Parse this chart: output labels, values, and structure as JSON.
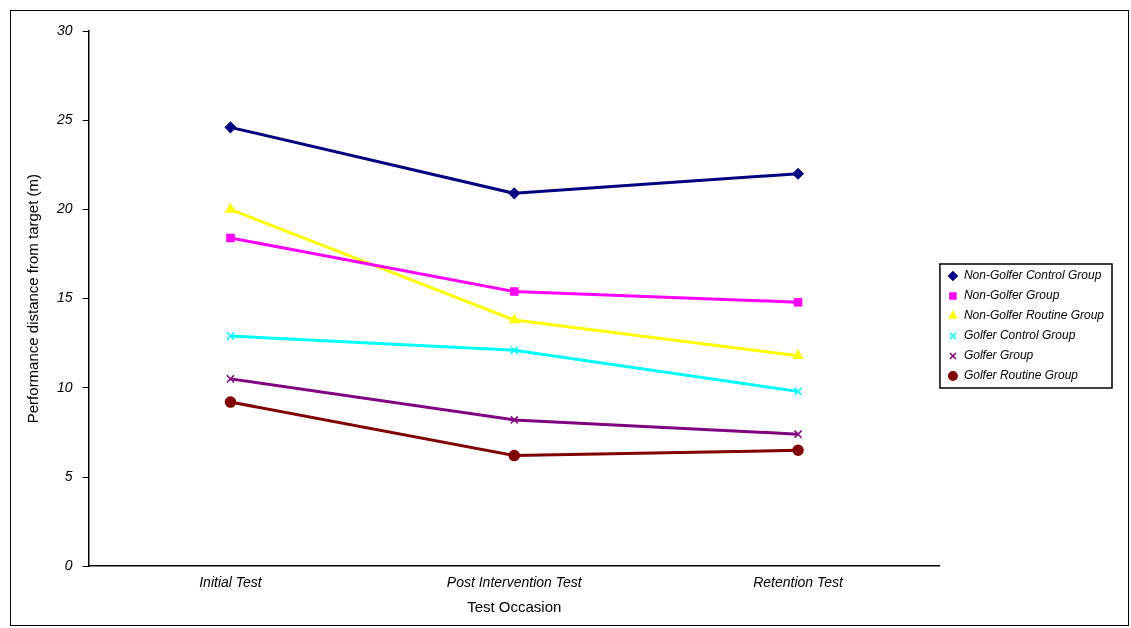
{
  "chart_data": {
    "type": "line",
    "xlabel": "Test Occasion",
    "ylabel": "Performance distance from target (m)",
    "categories": [
      "Initial Test",
      "Post Intervention Test",
      "Retention Test"
    ],
    "ylim": [
      0,
      30
    ],
    "yticks": [
      0,
      5,
      10,
      15,
      20,
      25,
      30
    ],
    "grid": false,
    "legend": "right",
    "line_style": "solid",
    "series": [
      {
        "name": "Non-Golfer Control Group",
        "color": "#000080",
        "marker": "diamond",
        "values": [
          24.6,
          20.9,
          22.0
        ]
      },
      {
        "name": "Non-Golfer Group",
        "color": "#ff00ff",
        "marker": "square",
        "values": [
          18.4,
          15.4,
          14.8
        ]
      },
      {
        "name": "Non-Golfer Routine Group",
        "color": "#ffff00",
        "marker": "triangle",
        "values": [
          20.0,
          13.8,
          11.8
        ]
      },
      {
        "name": "Golfer Control Group",
        "color": "#00ffff",
        "marker": "cross",
        "values": [
          12.9,
          12.1,
          9.8
        ]
      },
      {
        "name": "Golfer Group",
        "color": "#800080",
        "marker": "cross",
        "values": [
          10.5,
          8.2,
          7.4
        ]
      },
      {
        "name": "Golfer Routine Group",
        "color": "#800000",
        "marker": "circle",
        "values": [
          9.2,
          6.2,
          6.5
        ]
      }
    ]
  }
}
